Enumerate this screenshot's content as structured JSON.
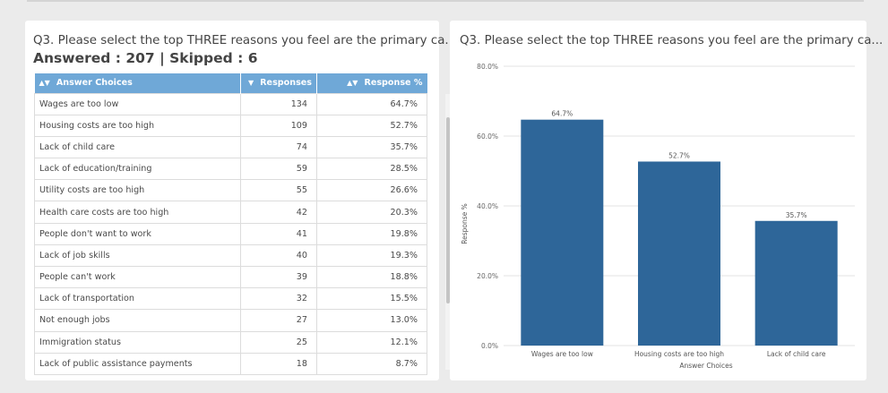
{
  "left_card": {
    "title": "Q3. Please select the top THREE reasons you feel are the primary ca...",
    "answered": "Answered : 207 | Skipped : 6",
    "headers": {
      "choice": "Answer Choices",
      "responses": "Responses",
      "percent": "Response %"
    },
    "rows": [
      {
        "choice": "Wages are too low",
        "responses": "134",
        "percent": "64.7%"
      },
      {
        "choice": "Housing costs are too high",
        "responses": "109",
        "percent": "52.7%"
      },
      {
        "choice": "Lack of child care",
        "responses": "74",
        "percent": "35.7%"
      },
      {
        "choice": "Lack of education/training",
        "responses": "59",
        "percent": "28.5%"
      },
      {
        "choice": "Utility costs are too high",
        "responses": "55",
        "percent": "26.6%"
      },
      {
        "choice": "Health care costs are too high",
        "responses": "42",
        "percent": "20.3%"
      },
      {
        "choice": "People don't want to work",
        "responses": "41",
        "percent": "19.8%"
      },
      {
        "choice": "Lack of job skills",
        "responses": "40",
        "percent": "19.3%"
      },
      {
        "choice": "People can't work",
        "responses": "39",
        "percent": "18.8%"
      },
      {
        "choice": "Lack of transportation",
        "responses": "32",
        "percent": "15.5%"
      },
      {
        "choice": "Not enough jobs",
        "responses": "27",
        "percent": "13.0%"
      },
      {
        "choice": "Immigration status",
        "responses": "25",
        "percent": "12.1%"
      },
      {
        "choice": "Lack of public assistance payments",
        "responses": "18",
        "percent": "8.7%"
      }
    ]
  },
  "right_card": {
    "title": "Q3. Please select the top THREE reasons you feel are the primary ca..."
  },
  "colors": {
    "header_bg": "#6fa8d7",
    "bar": "#2e6699"
  },
  "chart_data": {
    "type": "bar",
    "categories": [
      "Wages are too low",
      "Housing costs are too high",
      "Lack of child care"
    ],
    "values": [
      64.7,
      52.7,
      35.7
    ],
    "value_labels": [
      "64.7%",
      "52.7%",
      "35.7%"
    ],
    "ylim": [
      0,
      80
    ],
    "yticks": [
      0,
      20,
      40,
      60,
      80
    ],
    "ytick_labels": [
      "0.0%",
      "20.0%",
      "40.0%",
      "60.0%",
      "80.0%"
    ],
    "xlabel": "Answer Choices",
    "ylabel": "Response %",
    "grid": true
  }
}
